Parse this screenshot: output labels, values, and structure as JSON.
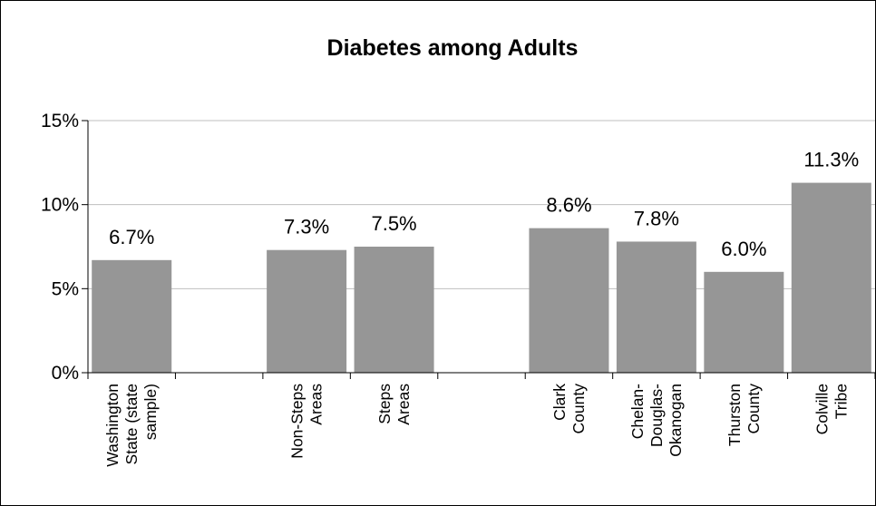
{
  "chart_data": {
    "type": "bar",
    "title": "Diabetes among Adults",
    "categories": [
      [
        "Washington",
        "State (state",
        "sample)"
      ],
      [],
      [
        "Non-Steps",
        "Areas"
      ],
      [
        "Steps",
        "Areas"
      ],
      [],
      [
        "Clark",
        "County"
      ],
      [
        "Chelan-",
        "Douglas-",
        "Okanogan"
      ],
      [
        "Thurston",
        "County"
      ],
      [
        "Colville",
        "Tribe"
      ]
    ],
    "values": [
      6.7,
      null,
      7.3,
      7.5,
      null,
      8.6,
      7.8,
      6.0,
      11.3
    ],
    "data_labels": [
      "6.7%",
      "",
      "7.3%",
      "7.5%",
      "",
      "8.6%",
      "7.8%",
      "6.0%",
      "11.3%"
    ],
    "ylim": [
      0,
      15
    ],
    "yticks": [
      0,
      5,
      10,
      15
    ],
    "ytick_labels": [
      "0%",
      "5%",
      "10%",
      "15%"
    ],
    "xlabel": "",
    "ylabel": "",
    "grid": true,
    "legend": "none",
    "colors": {
      "bar": "#969696",
      "grid": "#bfbfbf",
      "axis": "#000000"
    }
  }
}
